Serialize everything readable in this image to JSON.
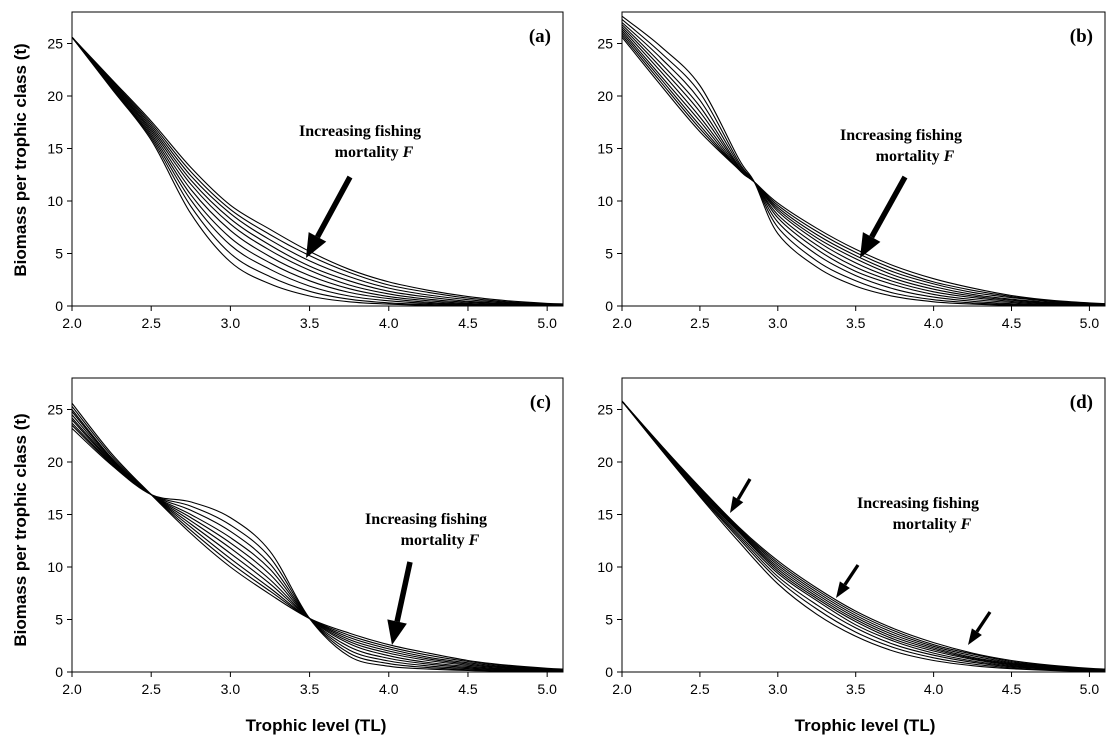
{
  "figure": {
    "ylabel": "Biomass per trophic class (t)",
    "xlabel": "Trophic level (TL)"
  },
  "chart_data": [
    {
      "type": "line",
      "panel_label": "(a)",
      "annotation": {
        "line1": "Increasing fishing",
        "line2_text": "mortality ",
        "line2_var": "F"
      },
      "xlim": [
        2.0,
        5.1
      ],
      "ylim": [
        0,
        28
      ],
      "xticks": [
        "2.0",
        "2.5",
        "3.0",
        "3.5",
        "4.0",
        "4.5",
        "5.0"
      ],
      "yticks": [
        "0",
        "5",
        "10",
        "15",
        "20",
        "25"
      ],
      "grid": false,
      "x": [
        2.0,
        2.25,
        2.5,
        2.75,
        3.0,
        3.25,
        3.5,
        3.75,
        4.0,
        4.25,
        4.5,
        4.75,
        5.0,
        5.1
      ],
      "series": [
        {
          "values": [
            25.6,
            21.6,
            17.6,
            13.2,
            9.6,
            7.3,
            5.2,
            3.5,
            2.3,
            1.5,
            0.9,
            0.5,
            0.25,
            0.2
          ]
        },
        {
          "values": [
            25.6,
            21.5,
            17.4,
            12.8,
            9.2,
            6.8,
            4.8,
            3.2,
            2.0,
            1.3,
            0.75,
            0.4,
            0.2,
            0.15
          ]
        },
        {
          "values": [
            25.6,
            21.4,
            17.2,
            12.4,
            8.8,
            6.3,
            4.3,
            2.8,
            1.7,
            1.05,
            0.6,
            0.32,
            0.15,
            0.1
          ]
        },
        {
          "values": [
            25.6,
            21.3,
            17.0,
            12.0,
            8.3,
            5.8,
            3.8,
            2.4,
            1.4,
            0.85,
            0.45,
            0.25,
            0.1,
            0.08
          ]
        },
        {
          "values": [
            25.6,
            21.2,
            16.8,
            11.6,
            7.8,
            5.3,
            3.4,
            2.0,
            1.15,
            0.65,
            0.35,
            0.18,
            0.08,
            0.05
          ]
        },
        {
          "values": [
            25.6,
            21.1,
            16.6,
            11.1,
            7.2,
            4.7,
            2.9,
            1.65,
            0.9,
            0.5,
            0.25,
            0.12,
            0.05,
            0.04
          ]
        },
        {
          "values": [
            25.6,
            21.0,
            16.4,
            10.6,
            6.5,
            4.1,
            2.4,
            1.3,
            0.7,
            0.35,
            0.18,
            0.08,
            0.03,
            0.02
          ]
        },
        {
          "values": [
            25.6,
            20.9,
            16.2,
            10.1,
            5.8,
            3.5,
            1.9,
            0.95,
            0.5,
            0.25,
            0.12,
            0.05,
            0.02,
            0.01
          ]
        },
        {
          "values": [
            25.6,
            20.8,
            16.0,
            9.5,
            5.0,
            2.8,
            1.4,
            0.65,
            0.3,
            0.15,
            0.06,
            0.03,
            0.01,
            0.01
          ]
        },
        {
          "values": [
            25.6,
            20.7,
            15.8,
            8.8,
            4.2,
            2.1,
            0.95,
            0.4,
            0.18,
            0.08,
            0.03,
            0.01,
            0.0,
            0.0
          ]
        }
      ]
    },
    {
      "type": "line",
      "panel_label": "(b)",
      "annotation": {
        "line1": "Increasing fishing",
        "line2_text": "mortality ",
        "line2_var": "F"
      },
      "xlim": [
        2.0,
        5.1
      ],
      "ylim": [
        0,
        28
      ],
      "xticks": [
        "2.0",
        "2.5",
        "3.0",
        "3.5",
        "4.0",
        "4.5",
        "5.0"
      ],
      "yticks": [
        "0",
        "5",
        "10",
        "15",
        "20",
        "25"
      ],
      "grid": false,
      "x": [
        2.0,
        2.25,
        2.5,
        2.75,
        2.85,
        3.0,
        3.25,
        3.5,
        3.75,
        4.0,
        4.25,
        4.5,
        4.75,
        5.0,
        5.1
      ],
      "series": [
        {
          "values": [
            25.6,
            21.0,
            16.6,
            13.0,
            11.8,
            9.8,
            7.4,
            5.4,
            3.8,
            2.6,
            1.7,
            1.0,
            0.55,
            0.3,
            0.22
          ]
        },
        {
          "values": [
            25.8,
            21.3,
            16.9,
            13.0,
            11.8,
            9.6,
            7.1,
            5.1,
            3.5,
            2.3,
            1.5,
            0.9,
            0.5,
            0.25,
            0.2
          ]
        },
        {
          "values": [
            26.0,
            21.6,
            17.2,
            13.0,
            11.8,
            9.4,
            6.8,
            4.8,
            3.2,
            2.1,
            1.3,
            0.8,
            0.43,
            0.2,
            0.16
          ]
        },
        {
          "values": [
            26.2,
            21.9,
            17.6,
            13.0,
            11.8,
            9.2,
            6.5,
            4.5,
            2.9,
            1.85,
            1.1,
            0.65,
            0.35,
            0.16,
            0.12
          ]
        },
        {
          "values": [
            26.4,
            22.3,
            18.0,
            13.1,
            11.8,
            9.0,
            6.2,
            4.1,
            2.6,
            1.6,
            0.95,
            0.55,
            0.28,
            0.12,
            0.1
          ]
        },
        {
          "values": [
            26.6,
            22.7,
            18.5,
            13.2,
            11.8,
            8.7,
            5.8,
            3.7,
            2.3,
            1.35,
            0.8,
            0.44,
            0.22,
            0.1,
            0.08
          ]
        },
        {
          "values": [
            26.8,
            23.1,
            19.0,
            13.3,
            11.8,
            8.4,
            5.4,
            3.3,
            2.0,
            1.1,
            0.62,
            0.33,
            0.16,
            0.07,
            0.05
          ]
        },
        {
          "values": [
            27.0,
            23.6,
            19.6,
            13.5,
            11.8,
            8.0,
            4.9,
            2.9,
            1.6,
            0.85,
            0.45,
            0.22,
            0.1,
            0.04,
            0.03
          ]
        },
        {
          "values": [
            27.3,
            24.1,
            20.3,
            13.7,
            11.8,
            7.5,
            4.3,
            2.4,
            1.2,
            0.6,
            0.3,
            0.14,
            0.06,
            0.02,
            0.02
          ]
        },
        {
          "values": [
            27.6,
            24.7,
            21.0,
            14.0,
            11.8,
            6.9,
            3.7,
            1.9,
            0.9,
            0.4,
            0.18,
            0.08,
            0.03,
            0.01,
            0.01
          ]
        }
      ]
    },
    {
      "type": "line",
      "panel_label": "(c)",
      "annotation": {
        "line1": "Increasing fishing",
        "line2_text": "mortality ",
        "line2_var": "F"
      },
      "xlim": [
        2.0,
        5.1
      ],
      "ylim": [
        0,
        28
      ],
      "xticks": [
        "2.0",
        "2.5",
        "3.0",
        "3.5",
        "4.0",
        "4.5",
        "5.0"
      ],
      "yticks": [
        "0",
        "5",
        "10",
        "15",
        "20",
        "25"
      ],
      "grid": false,
      "x": [
        2.0,
        2.25,
        2.5,
        2.75,
        3.0,
        3.25,
        3.5,
        3.75,
        4.0,
        4.25,
        4.5,
        4.75,
        5.0,
        5.1
      ],
      "series": [
        {
          "values": [
            25.6,
            20.8,
            16.9,
            13.2,
            10.0,
            7.4,
            5.1,
            3.7,
            2.6,
            1.8,
            1.1,
            0.65,
            0.35,
            0.28
          ]
        },
        {
          "values": [
            25.3,
            20.6,
            16.9,
            13.5,
            10.4,
            7.7,
            5.1,
            3.5,
            2.4,
            1.6,
            1.0,
            0.58,
            0.3,
            0.24
          ]
        },
        {
          "values": [
            25.0,
            20.4,
            16.9,
            13.8,
            10.8,
            8.0,
            5.1,
            3.3,
            2.2,
            1.4,
            0.88,
            0.5,
            0.26,
            0.2
          ]
        },
        {
          "values": [
            24.8,
            20.3,
            16.9,
            14.1,
            11.3,
            8.4,
            5.1,
            3.1,
            2.0,
            1.25,
            0.76,
            0.43,
            0.22,
            0.17
          ]
        },
        {
          "values": [
            24.5,
            20.2,
            16.9,
            14.4,
            11.8,
            8.8,
            5.1,
            2.9,
            1.8,
            1.1,
            0.65,
            0.37,
            0.18,
            0.14
          ]
        },
        {
          "values": [
            24.2,
            20.1,
            16.9,
            14.7,
            12.3,
            9.3,
            5.1,
            2.7,
            1.55,
            0.9,
            0.53,
            0.3,
            0.14,
            0.11
          ]
        },
        {
          "values": [
            24.0,
            20.0,
            16.9,
            15.0,
            12.8,
            9.8,
            5.1,
            2.4,
            1.3,
            0.75,
            0.42,
            0.23,
            0.11,
            0.08
          ]
        },
        {
          "values": [
            23.7,
            19.9,
            16.9,
            15.4,
            13.4,
            10.3,
            5.1,
            2.1,
            1.05,
            0.58,
            0.32,
            0.17,
            0.08,
            0.06
          ]
        },
        {
          "values": [
            23.5,
            19.8,
            16.9,
            15.8,
            14.0,
            10.9,
            5.1,
            1.8,
            0.8,
            0.42,
            0.22,
            0.11,
            0.05,
            0.04
          ]
        },
        {
          "values": [
            23.2,
            19.7,
            16.9,
            16.2,
            14.7,
            11.5,
            5.1,
            1.5,
            0.55,
            0.28,
            0.14,
            0.07,
            0.03,
            0.02
          ]
        }
      ]
    },
    {
      "type": "line",
      "panel_label": "(d)",
      "annotation": {
        "line1": "Increasing fishing",
        "line2_text": "mortality ",
        "line2_var": "F"
      },
      "xlim": [
        2.0,
        5.1
      ],
      "ylim": [
        0,
        28
      ],
      "xticks": [
        "2.0",
        "2.5",
        "3.0",
        "3.5",
        "4.0",
        "4.5",
        "5.0"
      ],
      "yticks": [
        "0",
        "5",
        "10",
        "15",
        "20",
        "25"
      ],
      "grid": false,
      "x": [
        2.0,
        2.25,
        2.5,
        2.75,
        3.0,
        3.25,
        3.5,
        3.75,
        4.0,
        4.25,
        4.5,
        4.75,
        5.0,
        5.1
      ],
      "series": [
        {
          "values": [
            25.8,
            21.6,
            17.6,
            13.8,
            10.6,
            8.0,
            5.8,
            4.1,
            2.8,
            1.8,
            1.1,
            0.65,
            0.35,
            0.28
          ]
        },
        {
          "values": [
            25.8,
            21.6,
            17.5,
            13.7,
            10.4,
            7.8,
            5.6,
            3.9,
            2.6,
            1.7,
            1.0,
            0.58,
            0.3,
            0.24
          ]
        },
        {
          "values": [
            25.8,
            21.5,
            17.4,
            13.6,
            10.2,
            7.6,
            5.4,
            3.7,
            2.45,
            1.55,
            0.9,
            0.52,
            0.26,
            0.21
          ]
        },
        {
          "values": [
            25.8,
            21.5,
            17.3,
            13.5,
            10.0,
            7.4,
            5.2,
            3.5,
            2.3,
            1.4,
            0.82,
            0.46,
            0.23,
            0.18
          ]
        },
        {
          "values": [
            25.8,
            21.4,
            17.2,
            13.4,
            9.8,
            7.2,
            5.0,
            3.3,
            2.15,
            1.3,
            0.74,
            0.41,
            0.2,
            0.16
          ]
        },
        {
          "values": [
            25.8,
            21.4,
            17.1,
            13.3,
            9.6,
            7.0,
            4.8,
            3.1,
            2.0,
            1.2,
            0.66,
            0.36,
            0.17,
            0.14
          ]
        },
        {
          "values": [
            25.8,
            21.3,
            17.0,
            13.1,
            9.4,
            6.8,
            4.5,
            2.9,
            1.8,
            1.05,
            0.58,
            0.31,
            0.15,
            0.12
          ]
        },
        {
          "values": [
            25.8,
            21.3,
            16.9,
            12.9,
            9.1,
            6.4,
            4.2,
            2.6,
            1.6,
            0.92,
            0.5,
            0.26,
            0.12,
            0.1
          ]
        },
        {
          "values": [
            25.8,
            21.2,
            16.8,
            12.7,
            8.8,
            6.0,
            3.8,
            2.3,
            1.35,
            0.76,
            0.4,
            0.2,
            0.09,
            0.07
          ]
        },
        {
          "values": [
            25.8,
            21.2,
            16.7,
            12.4,
            8.4,
            5.5,
            3.4,
            1.95,
            1.1,
            0.6,
            0.31,
            0.15,
            0.07,
            0.05
          ]
        }
      ]
    }
  ]
}
